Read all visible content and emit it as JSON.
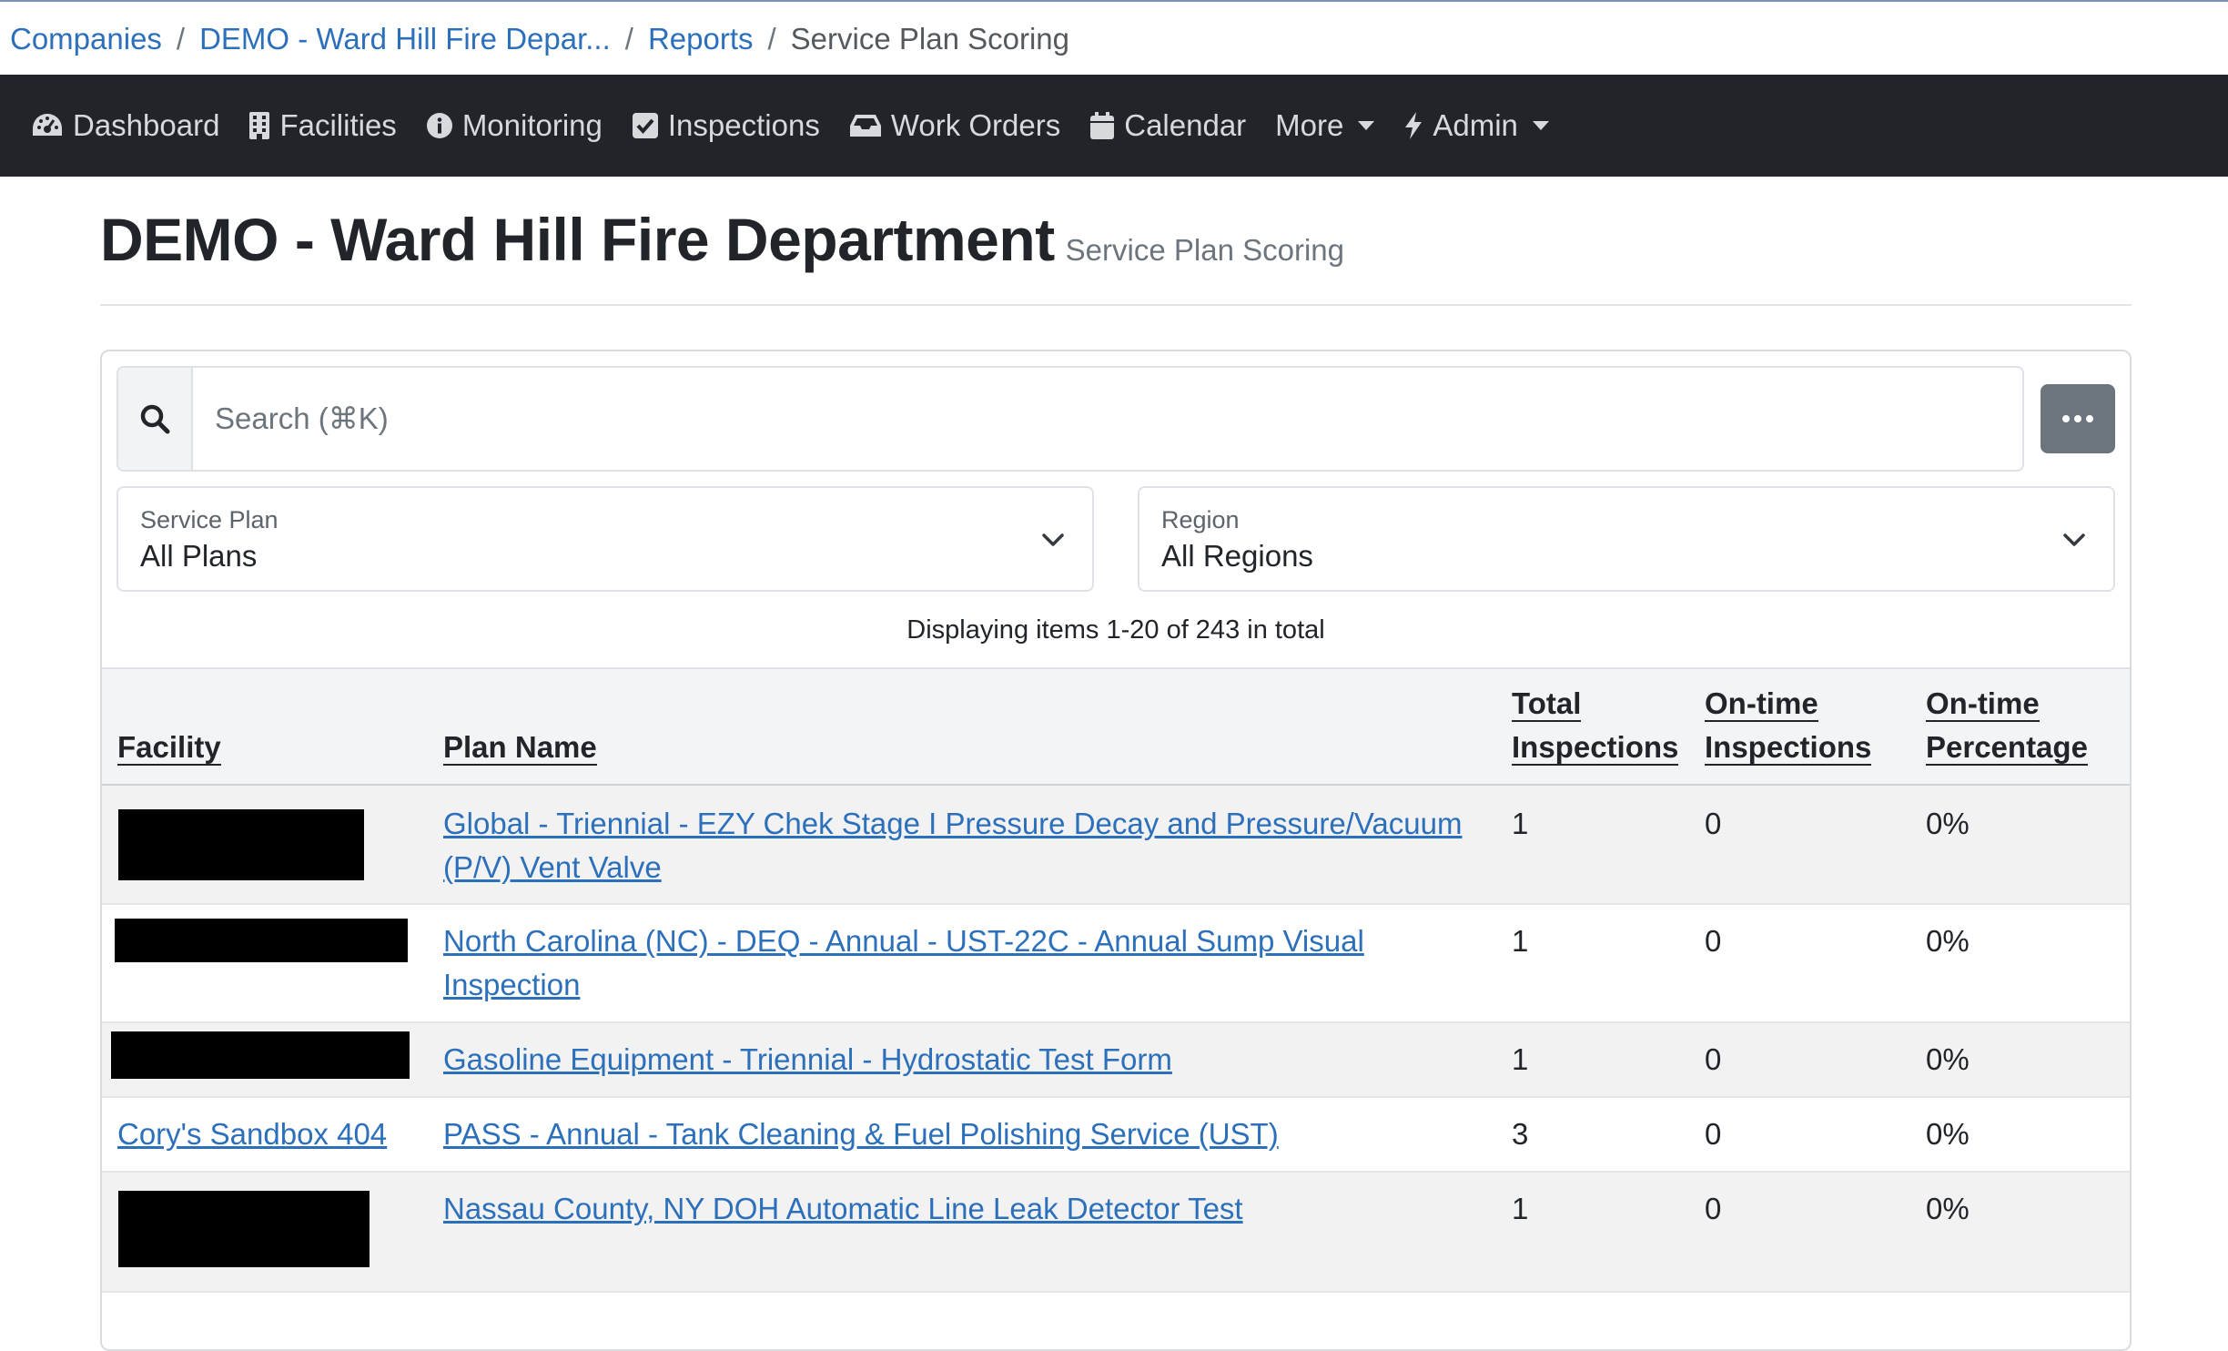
{
  "breadcrumb": {
    "items": [
      "Companies",
      "DEMO - Ward Hill Fire Depar...",
      "Reports"
    ],
    "current": "Service Plan Scoring",
    "separator": "/"
  },
  "nav": {
    "items": [
      {
        "label": "Dashboard",
        "icon": "dashboard-gauge-icon"
      },
      {
        "label": "Facilities",
        "icon": "building-icon"
      },
      {
        "label": "Monitoring",
        "icon": "info-circle-icon"
      },
      {
        "label": "Inspections",
        "icon": "check-square-icon"
      },
      {
        "label": "Work Orders",
        "icon": "inbox-tray-icon"
      },
      {
        "label": "Calendar",
        "icon": "calendar-icon"
      },
      {
        "label": "More",
        "icon": "caret-down-icon"
      },
      {
        "label": "Admin",
        "icon": "bolt-icon"
      }
    ]
  },
  "page": {
    "title": "DEMO - Ward Hill Fire Department",
    "subtitle": "Service Plan Scoring"
  },
  "search": {
    "placeholder": "Search (⌘K)",
    "value": ""
  },
  "filters": {
    "service_plan": {
      "label": "Service Plan",
      "value": "All Plans"
    },
    "region": {
      "label": "Region",
      "value": "All Regions"
    }
  },
  "table": {
    "info": "Displaying items 1-20 of 243 in total",
    "headers": {
      "facility": "Facility",
      "plan_name": "Plan Name",
      "total_line1": "Total",
      "total_line2": "Inspections",
      "ontime_line1": "On-time",
      "ontime_line2": "Inspections",
      "pct_line1": "On-time",
      "pct_line2": "Percentage"
    },
    "rows": [
      {
        "facility": "",
        "facility_redacted": true,
        "plan_line1": "Global - Triennial - EZY Chek Stage I Pressure Decay and Pressure/Vacuum",
        "plan_line2": "(P/V) Vent Valve",
        "total": "1",
        "ontime": "0",
        "pct": "0%"
      },
      {
        "facility": "",
        "facility_redacted": true,
        "plan_line1": "North Carolina (NC) - DEQ - Annual - UST-22C - Annual Sump Visual",
        "plan_line2": "Inspection",
        "total": "1",
        "ontime": "0",
        "pct": "0%"
      },
      {
        "facility": "",
        "facility_redacted": true,
        "plan_line1": "Gasoline Equipment - Triennial - Hydrostatic Test Form",
        "plan_line2": "",
        "total": "1",
        "ontime": "0",
        "pct": "0%"
      },
      {
        "facility": "Cory's Sandbox 404",
        "facility_redacted": false,
        "plan_line1": "PASS - Annual - Tank Cleaning & Fuel Polishing Service (UST)",
        "plan_line2": "",
        "total": "3",
        "ontime": "0",
        "pct": "0%"
      },
      {
        "facility": "",
        "facility_redacted": true,
        "plan_line1": "Nassau County, NY DOH Automatic Line Leak Detector Test",
        "plan_line2": "",
        "total": "1",
        "ontime": "0",
        "pct": "0%"
      }
    ]
  },
  "colors": {
    "navbar_bg": "#212529",
    "link": "#2c6fbb",
    "more_button": "#6c757d",
    "striped_row": "#f2f2f2"
  }
}
